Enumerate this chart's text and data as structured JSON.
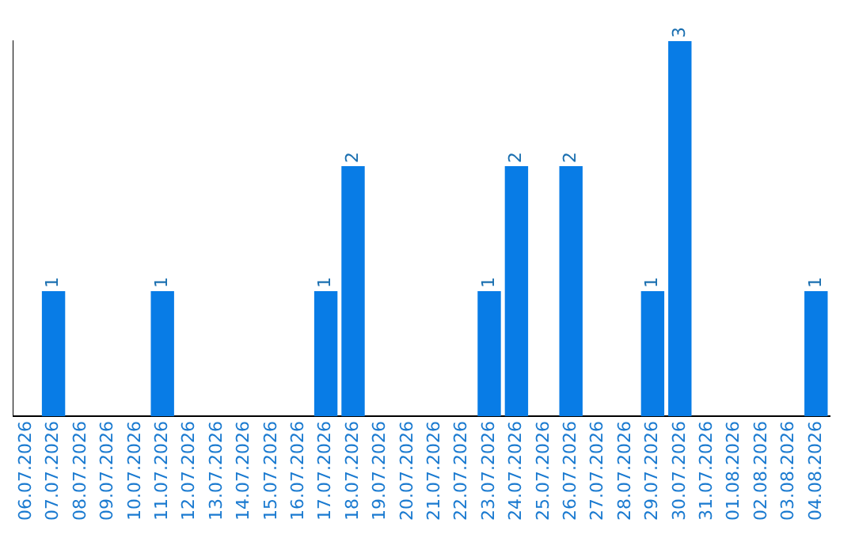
{
  "chart_data": {
    "type": "bar",
    "categories": [
      "06.07.2026",
      "07.07.2026",
      "08.07.2026",
      "09.07.2026",
      "10.07.2026",
      "11.07.2026",
      "12.07.2026",
      "13.07.2026",
      "14.07.2026",
      "15.07.2026",
      "16.07.2026",
      "17.07.2026",
      "18.07.2026",
      "19.07.2026",
      "20.07.2026",
      "21.07.2026",
      "22.07.2026",
      "23.07.2026",
      "24.07.2026",
      "25.07.2026",
      "26.07.2026",
      "27.07.2026",
      "28.07.2026",
      "29.07.2026",
      "30.07.2026",
      "31.07.2026",
      "01.08.2026",
      "02.08.2026",
      "03.08.2026",
      "04.08.2026"
    ],
    "values": [
      0,
      1,
      0,
      0,
      0,
      1,
      0,
      0,
      0,
      0,
      0,
      1,
      2,
      0,
      0,
      0,
      0,
      1,
      2,
      0,
      2,
      0,
      0,
      1,
      3,
      0,
      0,
      0,
      0,
      1
    ],
    "value_labels": [
      null,
      "1",
      null,
      null,
      null,
      "1",
      null,
      null,
      null,
      null,
      null,
      "1",
      "2",
      null,
      null,
      null,
      null,
      "1",
      "2",
      null,
      "2",
      null,
      null,
      "1",
      "3",
      null,
      null,
      null,
      null,
      "1"
    ],
    "color": "#087ce6",
    "ylim": [
      0,
      3
    ],
    "grid": false,
    "legend": false,
    "tick_labels": "x"
  }
}
